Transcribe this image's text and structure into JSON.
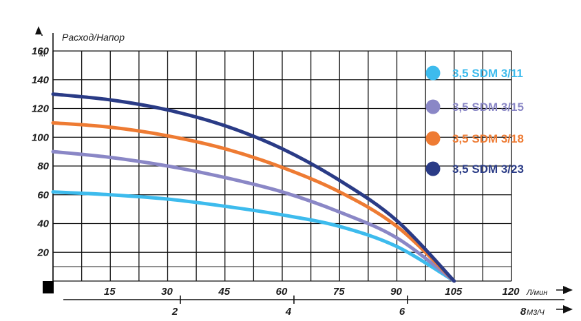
{
  "chart_data": {
    "type": "line",
    "ylabel": "Расход/Напор",
    "y_unit": "М",
    "x_unit": "Л/мин",
    "x2_unit": "М3/Ч",
    "ylim": [
      0,
      160
    ],
    "xlim": [
      0,
      120
    ],
    "y_ticks": [
      20,
      40,
      60,
      80,
      100,
      120,
      140,
      160
    ],
    "x_ticks": [
      15,
      30,
      45,
      60,
      75,
      90,
      105,
      120
    ],
    "x2_ticks": [
      2,
      4,
      6,
      8
    ],
    "grid": true,
    "legend_position": "top-right",
    "series": [
      {
        "name": "3,5 SDM 3/11",
        "color": "#3dbbed",
        "x": [
          0,
          15,
          30,
          45,
          60,
          75,
          90,
          105
        ],
        "y": [
          62,
          60,
          57,
          52,
          46,
          38,
          24,
          0
        ]
      },
      {
        "name": "3,5 SDM 3/15",
        "color": "#8a87c6",
        "x": [
          0,
          15,
          30,
          45,
          60,
          75,
          90,
          105
        ],
        "y": [
          90,
          86,
          80,
          72,
          62,
          48,
          30,
          0
        ]
      },
      {
        "name": "3,5 SDM 3/18",
        "color": "#ee7b33",
        "x": [
          0,
          15,
          30,
          45,
          60,
          75,
          90,
          105
        ],
        "y": [
          110,
          107,
          101,
          92,
          79,
          62,
          38,
          0
        ]
      },
      {
        "name": "3,5 SDM 3/23",
        "color": "#2a3b86",
        "x": [
          0,
          15,
          30,
          45,
          60,
          75,
          90,
          105
        ],
        "y": [
          130,
          126,
          119,
          108,
          92,
          70,
          42,
          0
        ]
      }
    ]
  }
}
